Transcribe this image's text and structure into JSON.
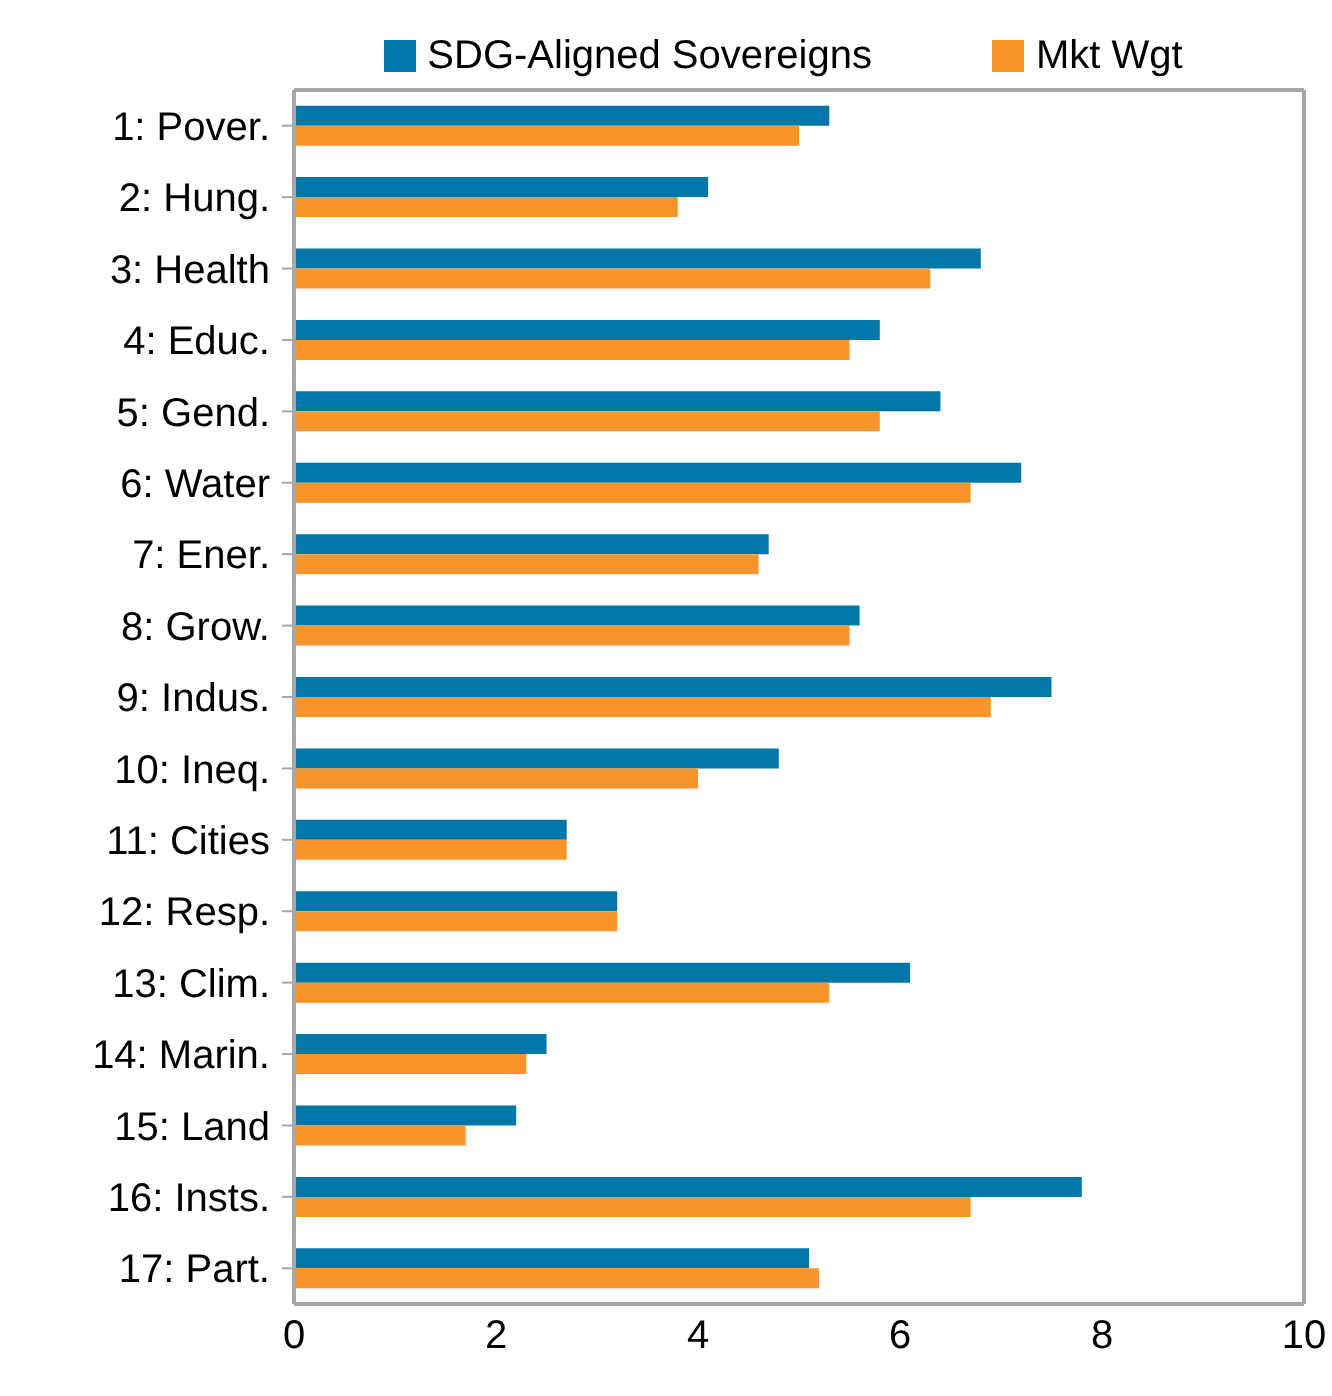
{
  "chart_data": {
    "type": "bar",
    "orientation": "horizontal",
    "categories": [
      "1: Pover.",
      "2: Hung.",
      "3: Health",
      "4: Educ.",
      "5: Gend.",
      "6: Water",
      "7: Ener.",
      "8: Grow.",
      "9: Indus.",
      "10: Ineq.",
      "11: Cities",
      "12: Resp.",
      "13: Clim.",
      "14: Marin.",
      "15: Land",
      "16: Insts.",
      "17: Part."
    ],
    "series": [
      {
        "name": "SDG-Aligned Sovereigns",
        "color": "#0077a8",
        "values": [
          5.3,
          4.1,
          6.8,
          5.8,
          6.4,
          7.2,
          4.7,
          5.6,
          7.5,
          4.8,
          2.7,
          3.2,
          6.1,
          2.5,
          2.2,
          7.8,
          5.1
        ]
      },
      {
        "name": "Mkt Wgt",
        "color": "#f7942c",
        "values": [
          5.0,
          3.8,
          6.3,
          5.5,
          5.8,
          6.7,
          4.6,
          5.5,
          6.9,
          4.0,
          2.7,
          3.2,
          5.3,
          2.3,
          1.7,
          6.7,
          5.2
        ]
      }
    ],
    "xlim": [
      0,
      10
    ],
    "xticks": [
      0,
      2,
      4,
      6,
      8,
      10
    ],
    "grid": false,
    "legend": "top"
  }
}
